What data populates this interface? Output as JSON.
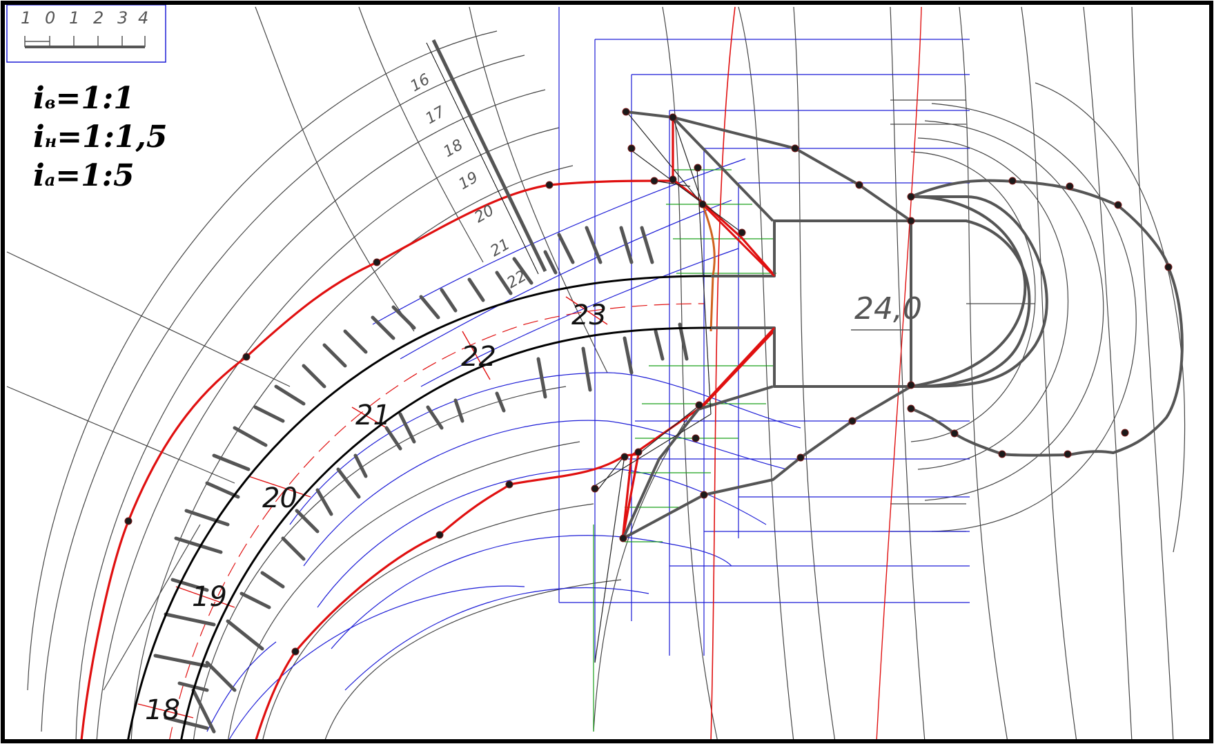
{
  "scale_bar": {
    "ticks": [
      "1",
      "0",
      "1",
      "2",
      "3",
      "4"
    ]
  },
  "slopes": [
    {
      "symbol": "i",
      "sub": "в",
      "value": "=1:1"
    },
    {
      "symbol": "i",
      "sub": "н",
      "value": "=1:1,5"
    },
    {
      "symbol": "i",
      "sub": "а",
      "value": "=1:5"
    }
  ],
  "road_stations": [
    "18",
    "19",
    "20",
    "21",
    "22",
    "23"
  ],
  "scale_rule_labels": [
    "16",
    "17",
    "18",
    "19",
    "20",
    "21",
    "22"
  ],
  "platform_elevation": "24,0",
  "colors": {
    "frame": "#000000",
    "contour": "#444444",
    "blue": "#1c1cd6",
    "green": "#1aa01a",
    "red": "#e01010",
    "edge": "#555555",
    "dot": "#1a1a1a",
    "road": "#000000",
    "orange": "#d0621e"
  }
}
